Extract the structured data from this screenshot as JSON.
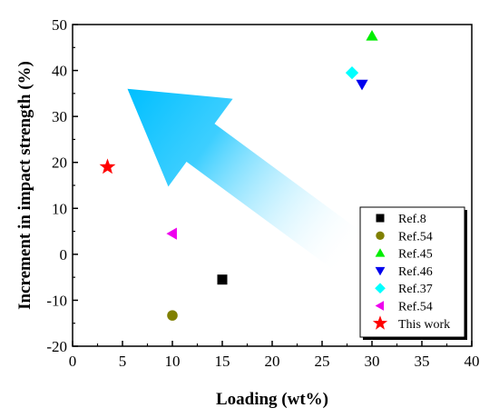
{
  "chart_data": {
    "type": "scatter",
    "title": "",
    "xlabel": "Loading (wt%)",
    "ylabel": "Increment in impact strength (%)",
    "xlim": [
      0,
      40
    ],
    "ylim": [
      -20,
      50
    ],
    "xticks": [
      0,
      5,
      10,
      15,
      20,
      25,
      30,
      35,
      40
    ],
    "yticks": [
      -20,
      -10,
      0,
      10,
      20,
      30,
      40,
      50
    ],
    "grid": false,
    "legend_position": "bottom-right",
    "series": [
      {
        "name": "Ref.8",
        "marker": "square",
        "color": "#000000",
        "points": [
          {
            "x": 15,
            "y": -5.5
          }
        ]
      },
      {
        "name": "Ref.54",
        "marker": "circle",
        "color": "#808000",
        "points": [
          {
            "x": 10,
            "y": -13.3
          }
        ]
      },
      {
        "name": "Ref.45",
        "marker": "triangle-up",
        "color": "#00ee00",
        "points": [
          {
            "x": 30,
            "y": 47.5
          }
        ]
      },
      {
        "name": "Ref.46",
        "marker": "triangle-down",
        "color": "#0000ee",
        "points": [
          {
            "x": 29,
            "y": 37
          }
        ]
      },
      {
        "name": "Ref.37",
        "marker": "diamond",
        "color": "#00ffff",
        "points": [
          {
            "x": 28,
            "y": 39.5
          }
        ]
      },
      {
        "name": "Ref.54",
        "marker": "triangle-left",
        "color": "#ee00ee",
        "points": [
          {
            "x": 10,
            "y": 4.5
          }
        ]
      },
      {
        "name": "This work",
        "marker": "star",
        "color": "#ff0000",
        "points": [
          {
            "x": 3.5,
            "y": 19
          }
        ]
      }
    ],
    "annotations": [
      {
        "type": "arrow",
        "from": {
          "x": 28,
          "y": 0
        },
        "to": {
          "x": 5.5,
          "y": 36
        },
        "color": "#00bfff"
      }
    ]
  }
}
